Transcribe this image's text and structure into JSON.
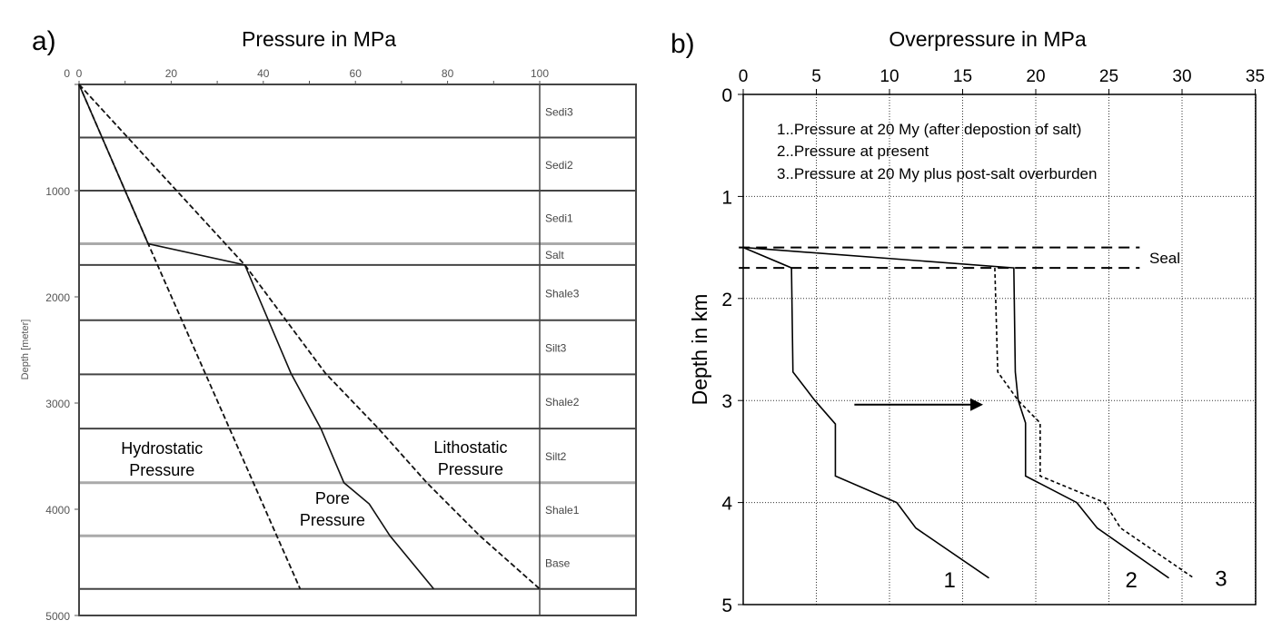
{
  "chart_data": [
    {
      "panel_label": "a)",
      "type": "line",
      "title": "Pressure in MPa",
      "xlabel": "",
      "ylabel": "Depth [meter]",
      "xlim": [
        0,
        120
      ],
      "ylim": [
        5000,
        0
      ],
      "x_ticks": [
        0,
        20,
        40,
        60,
        80,
        100
      ],
      "y_ticks": [
        0,
        1000,
        2000,
        3000,
        4000,
        5000
      ],
      "layers": [
        {
          "name": "Sedi3",
          "top": 0,
          "base": 500
        },
        {
          "name": "Sedi2",
          "top": 500,
          "base": 1000
        },
        {
          "name": "Sedi1",
          "top": 1000,
          "base": 1500
        },
        {
          "name": "Salt",
          "top": 1500,
          "base": 1700
        },
        {
          "name": "Shale3",
          "top": 1700,
          "base": 2220
        },
        {
          "name": "Silt3",
          "top": 2220,
          "base": 2730
        },
        {
          "name": "Shale2",
          "top": 2730,
          "base": 3240
        },
        {
          "name": "Silt2",
          "top": 3240,
          "base": 3750
        },
        {
          "name": "Shale1",
          "top": 3750,
          "base": 4250
        },
        {
          "name": "Base",
          "top": 4250,
          "base": 4750
        }
      ],
      "series": [
        {
          "name": "Hydrostatic Pressure",
          "style": "dashed",
          "points": [
            [
              0,
              0
            ],
            [
              15,
              1500
            ],
            [
              48,
              4750
            ]
          ]
        },
        {
          "name": "Pore Pressure",
          "style": "solid",
          "points": [
            [
              0,
              0
            ],
            [
              15,
              1500
            ],
            [
              36,
              1700
            ],
            [
              46,
              2720
            ],
            [
              52.5,
              3240
            ],
            [
              57.5,
              3750
            ],
            [
              63,
              3950
            ],
            [
              67.5,
              4250
            ],
            [
              77,
              4750
            ]
          ]
        },
        {
          "name": "Lithostatic Pressure",
          "style": "dashed",
          "points": [
            [
              0,
              0
            ],
            [
              36,
              1700
            ],
            [
              53.5,
              2720
            ],
            [
              65,
              3240
            ],
            [
              75.5,
              3750
            ],
            [
              87,
              4250
            ],
            [
              100,
              4750
            ]
          ]
        }
      ],
      "annotations": [
        {
          "text": [
            "Hydrostatic",
            "Pressure"
          ],
          "x": 18,
          "y": 3480
        },
        {
          "text": [
            "Pore",
            "Pressure"
          ],
          "x": 55,
          "y": 3950
        },
        {
          "text": [
            "Lithostatic",
            "Pressure"
          ],
          "x": 85,
          "y": 3470
        }
      ]
    },
    {
      "panel_label": "b)",
      "type": "line",
      "title": "Overpressure in MPa",
      "xlabel": "",
      "ylabel": "Depth in km",
      "xlim": [
        0,
        35
      ],
      "ylim": [
        5,
        0
      ],
      "x_ticks": [
        0,
        5,
        10,
        15,
        20,
        25,
        30,
        35
      ],
      "y_ticks": [
        0,
        1,
        2,
        3,
        4,
        5
      ],
      "grid": true,
      "legend_text": [
        "1..Pressure at 20 My (after depostion of salt)",
        "2..Pressure at present",
        "3..Pressure at 20 My plus post-salt overburden"
      ],
      "seal": {
        "label": "Seal",
        "top": 1.5,
        "base": 1.7
      },
      "series": [
        {
          "name": "1",
          "style": "solid",
          "points": [
            [
              0,
              1.5
            ],
            [
              3.3,
              1.7
            ],
            [
              3.4,
              2.72
            ],
            [
              4.9,
              3.0
            ],
            [
              6.3,
              3.23
            ],
            [
              6.3,
              3.74
            ],
            [
              10.5,
              4.0
            ],
            [
              11.8,
              4.25
            ],
            [
              16.8,
              4.74
            ]
          ]
        },
        {
          "name": "2",
          "style": "solid",
          "points": [
            [
              0,
              1.5
            ],
            [
              18.5,
              1.7
            ],
            [
              18.6,
              2.72
            ],
            [
              18.8,
              3.0
            ],
            [
              19.3,
              3.22
            ],
            [
              19.3,
              3.74
            ],
            [
              22.8,
              4.0
            ],
            [
              24.2,
              4.25
            ],
            [
              29.1,
              4.74
            ]
          ]
        },
        {
          "name": "3",
          "style": "dashed",
          "points": [
            [
              17.2,
              1.7
            ],
            [
              17.4,
              2.72
            ],
            [
              18.8,
              3.0
            ],
            [
              20.3,
              3.22
            ],
            [
              20.3,
              3.74
            ],
            [
              24.7,
              4.0
            ],
            [
              25.8,
              4.25
            ],
            [
              30.7,
              4.73
            ]
          ]
        }
      ],
      "arrow": {
        "from": [
          7.6,
          3.04
        ],
        "to": [
          16.4,
          3.04
        ]
      }
    }
  ]
}
